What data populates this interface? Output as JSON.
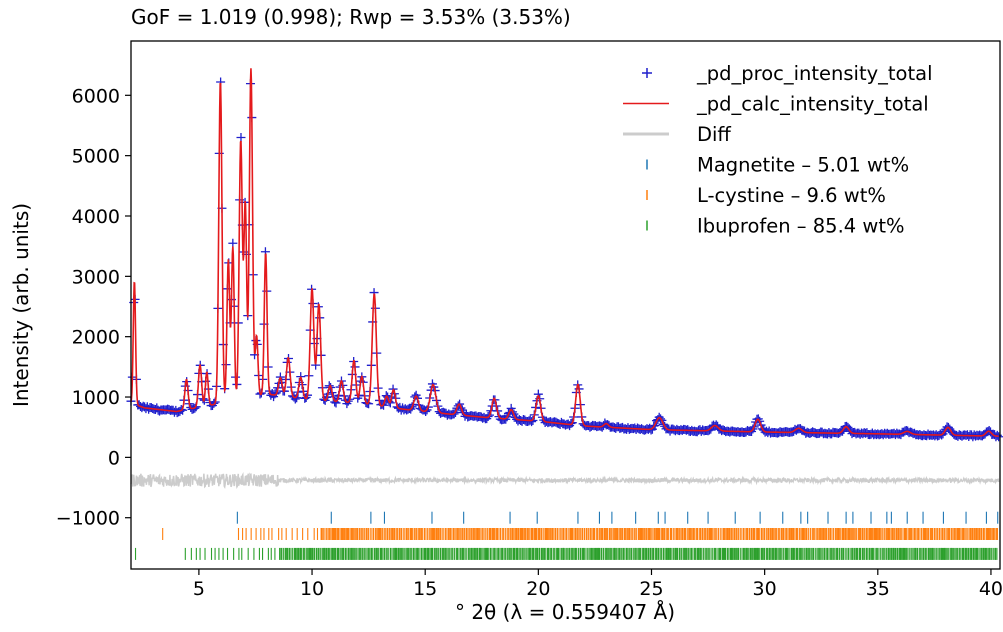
{
  "chart_data": {
    "type": "line",
    "title": "GoF = 1.019 (0.998); Rwp = 3.53% (3.53%)",
    "xlabel": "° 2θ (λ = 0.559407 Å)",
    "ylabel": "Intensity (arb. units)",
    "xlim": [
      2,
      40.4
    ],
    "ylim": [
      -1850,
      6900
    ],
    "x_ticks": [
      5,
      10,
      15,
      20,
      25,
      30,
      35,
      40
    ],
    "x_tick_labels": [
      "5",
      "10",
      "15",
      "20",
      "25",
      "30",
      "35",
      "40"
    ],
    "y_ticks": [
      -1000,
      0,
      1000,
      2000,
      3000,
      4000,
      5000,
      6000
    ],
    "y_tick_labels": [
      "−1000",
      "0",
      "1000",
      "2000",
      "3000",
      "4000",
      "5000",
      "6000"
    ],
    "grid": false,
    "legend_position": "top-right",
    "colors": {
      "observed": "#1f1fcc",
      "calculated": "#e41a1c",
      "difference": "#cccccc",
      "magnetite": "#1f77b4",
      "cystine": "#ff7f0e",
      "ibuprofen": "#2ca02c"
    },
    "legend": [
      {
        "label": "_pd_proc_intensity_total",
        "marker": "+",
        "color": "#1f1fcc"
      },
      {
        "label": "_pd_calc_intensity_total",
        "marker": "line",
        "color": "#e41a1c"
      },
      {
        "label": "Diff",
        "marker": "line",
        "color": "#cccccc"
      },
      {
        "label": "Magnetite – 5.01 wt%",
        "marker": "tick",
        "color": "#1f77b4"
      },
      {
        "label": "L-cystine – 9.6 wt%",
        "marker": "tick",
        "color": "#ff7f0e"
      },
      {
        "label": "Ibuprofen – 85.4 wt%",
        "marker": "tick",
        "color": "#2ca02c"
      }
    ],
    "series": [
      {
        "name": "_pd_proc_intensity_total",
        "kind": "observed",
        "background": [
          [
            2.0,
            900
          ],
          [
            2.6,
            820
          ],
          [
            4.0,
            760
          ],
          [
            6.0,
            900
          ],
          [
            8.0,
            1050
          ],
          [
            10.0,
            950
          ],
          [
            12.0,
            900
          ],
          [
            14.0,
            800
          ],
          [
            16.0,
            720
          ],
          [
            18.0,
            650
          ],
          [
            20.0,
            600
          ],
          [
            22.0,
            520
          ],
          [
            25.0,
            460
          ],
          [
            30.0,
            420
          ],
          [
            35.0,
            390
          ],
          [
            40.4,
            350
          ]
        ],
        "peaks": [
          [
            2.15,
            2050,
            0.05
          ],
          [
            4.45,
            500,
            0.07
          ],
          [
            5.05,
            700,
            0.07
          ],
          [
            5.35,
            560,
            0.06
          ],
          [
            5.95,
            5350,
            0.07
          ],
          [
            6.3,
            2350,
            0.06
          ],
          [
            6.5,
            2550,
            0.06
          ],
          [
            6.85,
            4300,
            0.07
          ],
          [
            7.05,
            3200,
            0.06
          ],
          [
            7.3,
            5450,
            0.07
          ],
          [
            7.55,
            1000,
            0.06
          ],
          [
            7.95,
            2350,
            0.06
          ],
          [
            8.6,
            300,
            0.08
          ],
          [
            8.95,
            650,
            0.08
          ],
          [
            9.5,
            350,
            0.08
          ],
          [
            10.0,
            1850,
            0.08
          ],
          [
            10.3,
            1600,
            0.08
          ],
          [
            10.8,
            260,
            0.08
          ],
          [
            11.3,
            350,
            0.08
          ],
          [
            11.85,
            700,
            0.08
          ],
          [
            12.2,
            450,
            0.08
          ],
          [
            12.75,
            1850,
            0.09
          ],
          [
            13.3,
            180,
            0.08
          ],
          [
            13.6,
            300,
            0.08
          ],
          [
            14.6,
            240,
            0.1
          ],
          [
            15.35,
            460,
            0.12
          ],
          [
            16.5,
            180,
            0.1
          ],
          [
            18.05,
            330,
            0.1
          ],
          [
            18.8,
            160,
            0.1
          ],
          [
            20.0,
            420,
            0.1
          ],
          [
            21.75,
            680,
            0.1
          ],
          [
            23.0,
            60,
            0.1
          ],
          [
            25.35,
            200,
            0.15
          ],
          [
            27.8,
            90,
            0.15
          ],
          [
            29.7,
            210,
            0.12
          ],
          [
            31.5,
            70,
            0.15
          ],
          [
            33.6,
            110,
            0.12
          ],
          [
            36.3,
            50,
            0.15
          ],
          [
            38.1,
            130,
            0.12
          ],
          [
            39.9,
            80,
            0.12
          ]
        ]
      },
      {
        "name": "_pd_calc_intensity_total",
        "kind": "calculated",
        "same_as": "_pd_proc_intensity_total"
      },
      {
        "name": "Diff",
        "kind": "difference",
        "offset": -380,
        "amplitude": 35,
        "amplitude_low_angle": 110
      }
    ],
    "reflections": [
      {
        "name": "Magnetite – 5.01 wt%",
        "row_y": -1000,
        "positions": [
          6.7,
          10.85,
          12.6,
          13.2,
          15.3,
          16.7,
          18.75,
          19.95,
          21.75,
          22.7,
          23.25,
          24.3,
          25.3,
          25.6,
          26.6,
          27.5,
          28.7,
          29.8,
          30.8,
          31.6,
          31.9,
          32.8,
          33.6,
          33.9,
          34.7,
          35.4,
          35.6,
          36.3,
          37.0,
          37.9,
          38.9,
          39.8,
          40.3
        ]
      },
      {
        "name": "L-cystine – 9.6 wt%",
        "row_y": -1270,
        "range": [
          3.4,
          40.3
        ],
        "start": 6.75,
        "dense_from": 10.3
      },
      {
        "name": "Ibuprofen – 85.4 wt%",
        "row_y": -1600,
        "range": [
          2.2,
          40.3
        ],
        "start": 4.4,
        "dense_from": 8.4
      }
    ]
  }
}
